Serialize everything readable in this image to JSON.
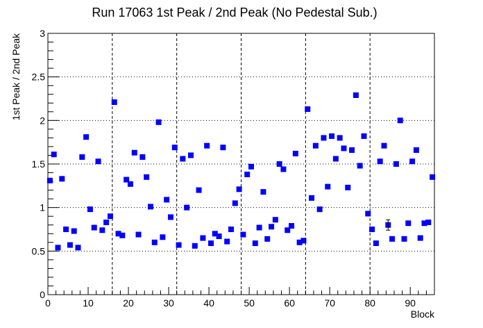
{
  "chart_data": {
    "type": "scatter",
    "title": "Run 17063 1st Peak / 2nd Peak (No Pedestal Sub.)",
    "xlabel": "Block",
    "ylabel": "1st Peak / 2nd Peak",
    "xlim": [
      0,
      96
    ],
    "ylim": [
      0,
      3
    ],
    "x_major_ticks": [
      0,
      10,
      20,
      30,
      40,
      50,
      60,
      70,
      80,
      90
    ],
    "y_major_ticks": [
      0,
      0.5,
      1,
      1.5,
      2,
      2.5,
      3
    ],
    "y_horizontal_grid": [
      0.5,
      1,
      1.5,
      2,
      2.5
    ],
    "x_vertical_grid": [
      16,
      32,
      48,
      64,
      80
    ],
    "grid": "dotted horizontal, dashed vertical every 16 blocks",
    "marker_color": "#0000ff",
    "marker": "square",
    "x": [
      0.5,
      1.5,
      2.5,
      3.5,
      4.5,
      5.5,
      6.5,
      7.5,
      8.5,
      9.5,
      10.5,
      11.5,
      12.5,
      13.5,
      14.5,
      15.5,
      16.5,
      17.5,
      18.5,
      19.5,
      20.5,
      21.5,
      22.5,
      23.5,
      24.5,
      25.5,
      26.5,
      27.5,
      28.5,
      29.5,
      30.5,
      31.5,
      32.5,
      33.5,
      34.5,
      35.5,
      36.5,
      37.5,
      38.5,
      39.5,
      40.5,
      41.5,
      42.5,
      43.5,
      44.5,
      45.5,
      46.5,
      47.5,
      48.5,
      49.5,
      50.5,
      51.5,
      52.5,
      53.5,
      54.5,
      55.5,
      56.5,
      57.5,
      58.5,
      59.5,
      60.5,
      61.5,
      62.5,
      63.5,
      64.5,
      65.5,
      66.5,
      67.5,
      68.5,
      69.5,
      70.5,
      71.5,
      72.5,
      73.5,
      74.5,
      75.5,
      76.5,
      77.5,
      78.5,
      79.5,
      80.5,
      81.5,
      82.5,
      83.5,
      84.5,
      85.5,
      86.5,
      87.5,
      88.5,
      89.5,
      90.5,
      91.5,
      92.5,
      93.5,
      94.5,
      95.5
    ],
    "y": [
      1.31,
      1.61,
      0.54,
      1.33,
      0.75,
      0.57,
      0.73,
      0.54,
      1.58,
      1.81,
      0.98,
      0.77,
      1.53,
      0.74,
      0.83,
      0.9,
      2.21,
      0.7,
      0.68,
      1.32,
      1.27,
      1.63,
      0.69,
      1.58,
      1.35,
      1.01,
      0.6,
      1.98,
      0.66,
      1.09,
      0.89,
      1.69,
      0.57,
      1.56,
      1.0,
      1.6,
      0.56,
      1.2,
      0.65,
      1.71,
      0.59,
      0.7,
      0.67,
      1.69,
      0.61,
      0.75,
      1.05,
      1.21,
      0.69,
      1.38,
      1.47,
      0.59,
      0.77,
      1.18,
      0.64,
      0.78,
      0.86,
      1.5,
      1.44,
      0.74,
      0.79,
      1.62,
      0.6,
      0.62,
      2.13,
      1.11,
      1.71,
      0.98,
      1.8,
      1.24,
      1.82,
      1.56,
      1.8,
      1.68,
      1.23,
      1.66,
      2.29,
      1.48,
      1.82,
      0.93,
      0.75,
      0.59,
      1.53,
      1.71,
      0.8,
      0.64,
      1.5,
      2.0,
      0.64,
      0.82,
      1.53,
      1.66,
      0.65,
      0.82,
      0.83,
      1.35
    ],
    "error_bar_points": [
      {
        "x": 84.5,
        "y": 0.8,
        "err": 0.06
      }
    ]
  }
}
